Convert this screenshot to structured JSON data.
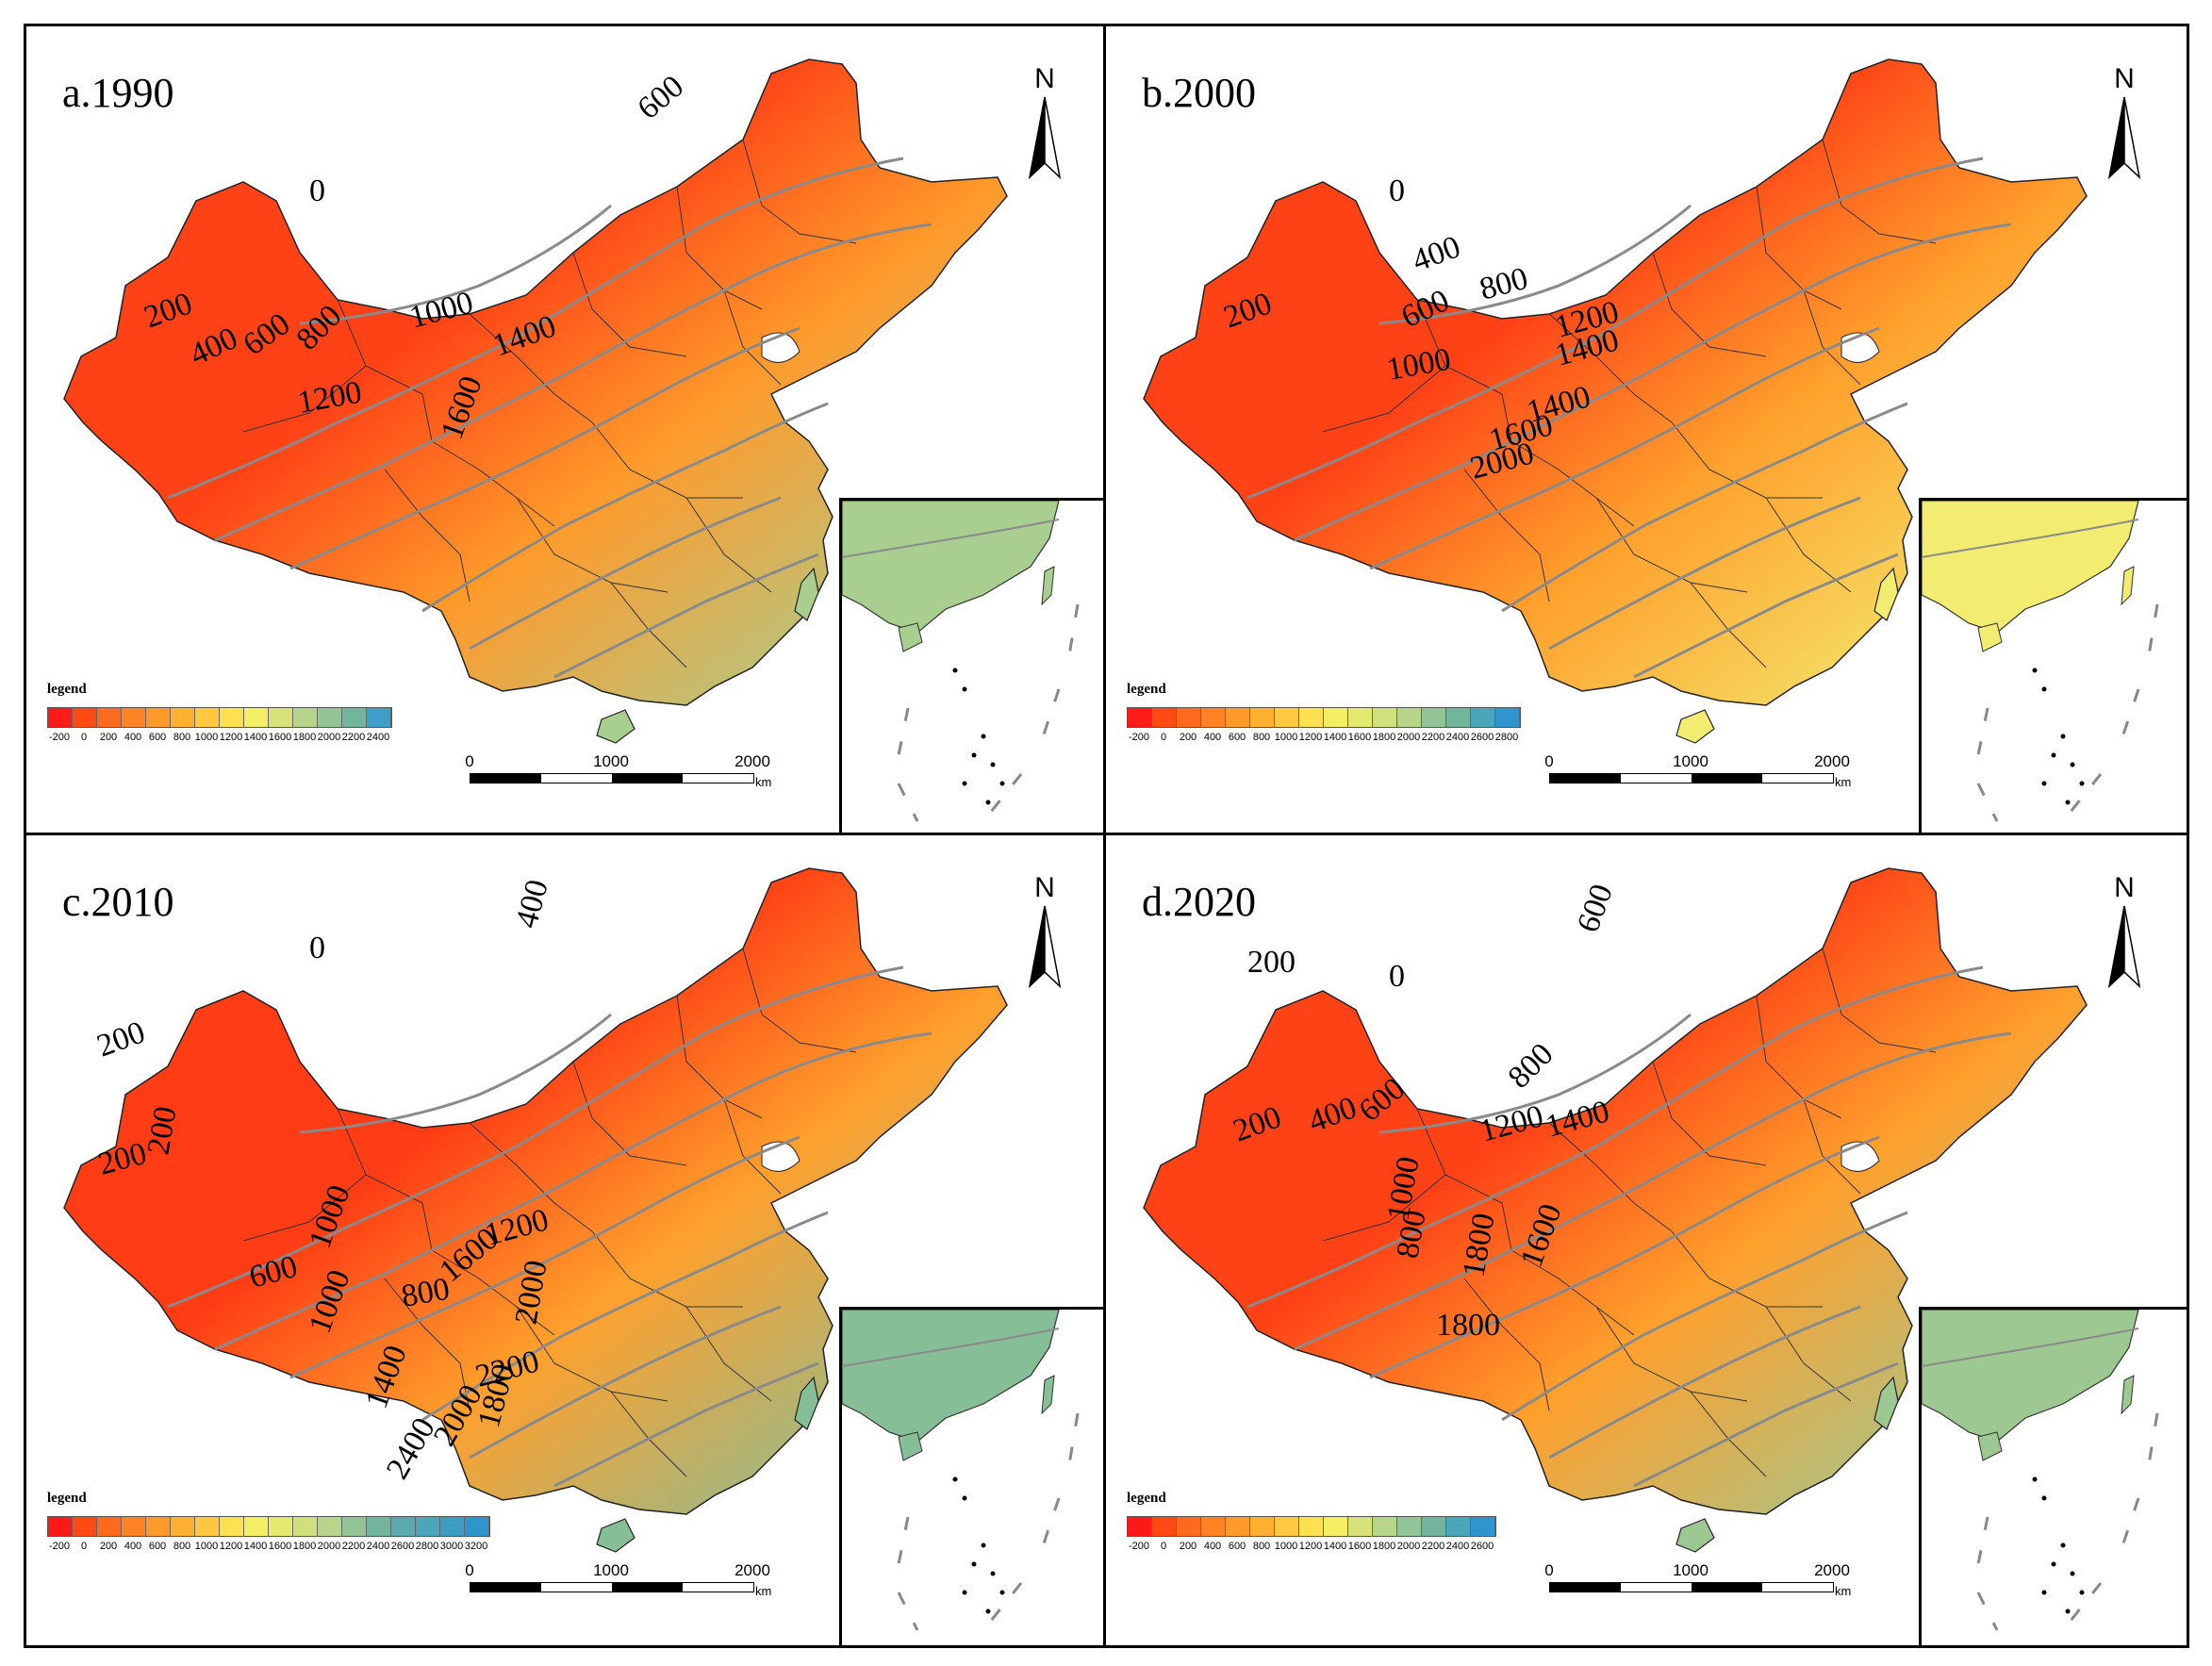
{
  "figure": {
    "panels": [
      {
        "title": "a.1990",
        "north_label": "N",
        "legend_title": "legend",
        "legend_ticks": [
          "-200",
          "0",
          "200",
          "400",
          "600",
          "800",
          "1000",
          "1200",
          "1400",
          "1600",
          "1800",
          "2000",
          "2200",
          "2400"
        ],
        "legend_colors": [
          "#ff1a1a",
          "#ff4a14",
          "#ff6a1e",
          "#ff8224",
          "#ff9a2a",
          "#ffb030",
          "#ffc840",
          "#ffe050",
          "#f4ee64",
          "#d8e27a",
          "#b6d48a",
          "#92c496",
          "#72b49c",
          "#3d9fc8"
        ],
        "scale_labels": [
          "0",
          "1000",
          "2000"
        ],
        "scale_unit": "km",
        "contour_labels": [
          "0",
          "200",
          "400",
          "600",
          "800",
          "1000",
          "1200",
          "1400",
          "1600",
          "600"
        ],
        "fill_start": "#ff4216",
        "fill_mid": "#ff9a2a",
        "fill_end": "#a8ce90"
      },
      {
        "title": "b.2000",
        "north_label": "N",
        "legend_title": "legend",
        "legend_ticks": [
          "-200",
          "0",
          "200",
          "400",
          "600",
          "800",
          "1000",
          "1200",
          "1400",
          "1600",
          "1800",
          "2000",
          "2200",
          "2400",
          "2600",
          "2800"
        ],
        "legend_colors": [
          "#ff1a1a",
          "#ff4a14",
          "#ff6a1e",
          "#ff8224",
          "#ff9a2a",
          "#ffb030",
          "#ffc840",
          "#ffe050",
          "#f4ee64",
          "#e4ea70",
          "#d0e07e",
          "#b6d48a",
          "#92c496",
          "#72b49c",
          "#4aa6b8",
          "#2f95cc"
        ],
        "scale_labels": [
          "0",
          "1000",
          "2000"
        ],
        "scale_unit": "km",
        "contour_labels": [
          "0",
          "200",
          "400",
          "600",
          "800",
          "1000",
          "1200",
          "1400",
          "1400",
          "1600",
          "2000"
        ],
        "fill_start": "#ff4216",
        "fill_mid": "#ffa02c",
        "fill_end": "#f2ec70"
      },
      {
        "title": "c.2010",
        "north_label": "N",
        "legend_title": "legend",
        "legend_ticks": [
          "-200",
          "0",
          "200",
          "400",
          "600",
          "800",
          "1000",
          "1200",
          "1400",
          "1600",
          "1800",
          "2000",
          "2200",
          "2400",
          "2600",
          "2800",
          "3000",
          "3200"
        ],
        "legend_colors": [
          "#ff1a1a",
          "#ff4a14",
          "#ff6a1e",
          "#ff8224",
          "#ff9a2a",
          "#ffb030",
          "#ffc840",
          "#ffe050",
          "#f4ee64",
          "#e4ea70",
          "#d0e07e",
          "#b6d48a",
          "#92c496",
          "#72b49c",
          "#5aaab0",
          "#4aa6b8",
          "#3c9cc4",
          "#2f95cc"
        ],
        "scale_labels": [
          "0",
          "1000",
          "2000"
        ],
        "scale_unit": "km",
        "contour_labels": [
          "0",
          "200",
          "200",
          "200",
          "400",
          "600",
          "800",
          "1000",
          "1000",
          "1200",
          "1400",
          "1600",
          "1800",
          "2000",
          "2200",
          "2400",
          "2000"
        ],
        "fill_start": "#ff3c14",
        "fill_mid": "#ffa02c",
        "fill_end": "#86be98"
      },
      {
        "title": "d.2020",
        "north_label": "N",
        "legend_title": "legend",
        "legend_ticks": [
          "-200",
          "0",
          "200",
          "400",
          "600",
          "800",
          "1000",
          "1200",
          "1400",
          "1600",
          "1800",
          "2000",
          "2200",
          "2400",
          "2600"
        ],
        "legend_colors": [
          "#ff1a1a",
          "#ff4a14",
          "#ff6a1e",
          "#ff8224",
          "#ff9a2a",
          "#ffb030",
          "#ffc840",
          "#ffe050",
          "#f4ee64",
          "#d8e27a",
          "#b6d48a",
          "#92c496",
          "#72b49c",
          "#4aa6b8",
          "#2f95cc"
        ],
        "scale_labels": [
          "0",
          "1000",
          "2000"
        ],
        "scale_unit": "km",
        "contour_labels": [
          "0",
          "200",
          "200",
          "400",
          "600",
          "600",
          "800",
          "800",
          "1000",
          "1200",
          "1400",
          "1600",
          "1800",
          "1800"
        ],
        "fill_start": "#ff4216",
        "fill_mid": "#ffa02c",
        "fill_end": "#9ec892"
      }
    ]
  }
}
